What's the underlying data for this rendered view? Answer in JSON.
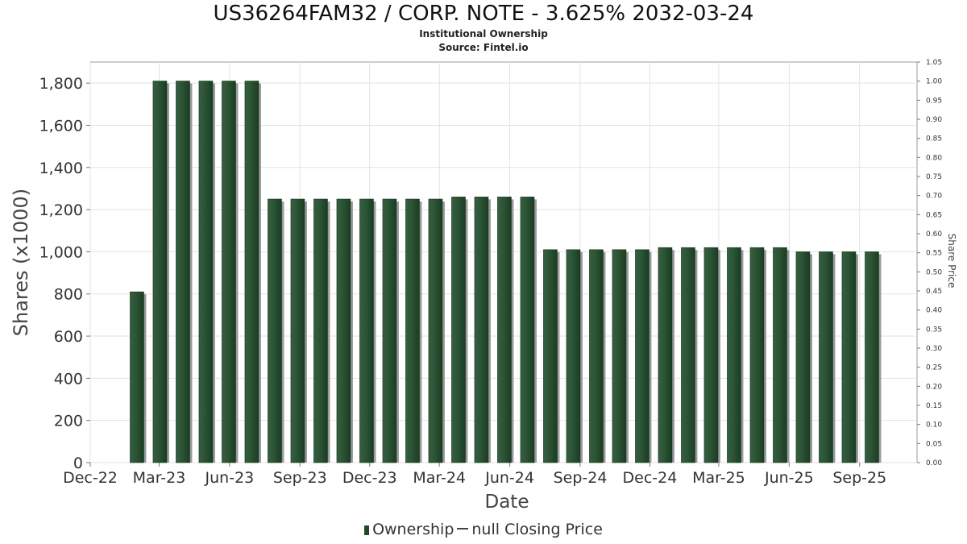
{
  "chart_data": {
    "type": "bar",
    "title": "US36264FAM32 / CORP. NOTE - 3.625% 2032-03-24",
    "subtitle_lines": [
      "Institutional Ownership",
      "Source: Fintel.io"
    ],
    "xlabel": "Date",
    "ylabel": "Shares (x1000)",
    "y2label": "Share Price",
    "ylim": [
      0,
      1900
    ],
    "y2lim": [
      0,
      1.05
    ],
    "yticks": [
      0,
      200,
      400,
      600,
      800,
      1000,
      1200,
      1400,
      1600,
      1800
    ],
    "ytick_labels": [
      "0",
      "200",
      "400",
      "600",
      "800",
      "1,000",
      "1,200",
      "1,400",
      "1,600",
      "1,800"
    ],
    "y2tick_labels": [
      "0.00",
      "0.05",
      "0.10",
      "0.15",
      "0.20",
      "0.25",
      "0.30",
      "0.35",
      "0.40",
      "0.45",
      "0.50",
      "0.55",
      "0.60",
      "0.65",
      "0.70",
      "0.75",
      "0.80",
      "0.85",
      "0.90",
      "0.95",
      "1.00",
      "1.05"
    ],
    "xlim": [
      "2022-12-01",
      "2025-11-15"
    ],
    "xticks": [
      {
        "date": "2022-12-01",
        "label": "Dec-22"
      },
      {
        "date": "2023-03-01",
        "label": "Mar-23"
      },
      {
        "date": "2023-06-01",
        "label": "Jun-23"
      },
      {
        "date": "2023-09-01",
        "label": "Sep-23"
      },
      {
        "date": "2023-12-01",
        "label": "Dec-23"
      },
      {
        "date": "2024-03-01",
        "label": "Mar-24"
      },
      {
        "date": "2024-06-01",
        "label": "Jun-24"
      },
      {
        "date": "2024-09-01",
        "label": "Sep-24"
      },
      {
        "date": "2024-12-01",
        "label": "Dec-24"
      },
      {
        "date": "2025-03-01",
        "label": "Mar-25"
      },
      {
        "date": "2025-06-01",
        "label": "Jun-25"
      },
      {
        "date": "2025-09-01",
        "label": "Sep-25"
      }
    ],
    "grid": true,
    "legend_position": "bottom",
    "legend": [
      "Ownership",
      "null Closing Price"
    ],
    "series": [
      {
        "name": "Ownership",
        "color": "#214a2c",
        "x": [
          "2023-01-31",
          "2023-03-02",
          "2023-04-01",
          "2023-05-01",
          "2023-05-31",
          "2023-06-30",
          "2023-07-30",
          "2023-08-29",
          "2023-09-28",
          "2023-10-28",
          "2023-11-27",
          "2023-12-27",
          "2024-01-26",
          "2024-02-25",
          "2024-03-26",
          "2024-04-25",
          "2024-05-25",
          "2024-06-24",
          "2024-07-24",
          "2024-08-23",
          "2024-09-22",
          "2024-10-22",
          "2024-11-21",
          "2024-12-21",
          "2025-01-20",
          "2025-02-19",
          "2025-03-21",
          "2025-04-20",
          "2025-05-20",
          "2025-06-19",
          "2025-07-19",
          "2025-08-18",
          "2025-09-17"
        ],
        "values": [
          810,
          1810,
          1810,
          1810,
          1810,
          1810,
          1250,
          1250,
          1250,
          1250,
          1250,
          1250,
          1250,
          1250,
          1260,
          1260,
          1260,
          1260,
          1010,
          1010,
          1010,
          1010,
          1010,
          1020,
          1020,
          1020,
          1020,
          1020,
          1020,
          1000,
          1000,
          1000,
          1000
        ]
      }
    ]
  }
}
